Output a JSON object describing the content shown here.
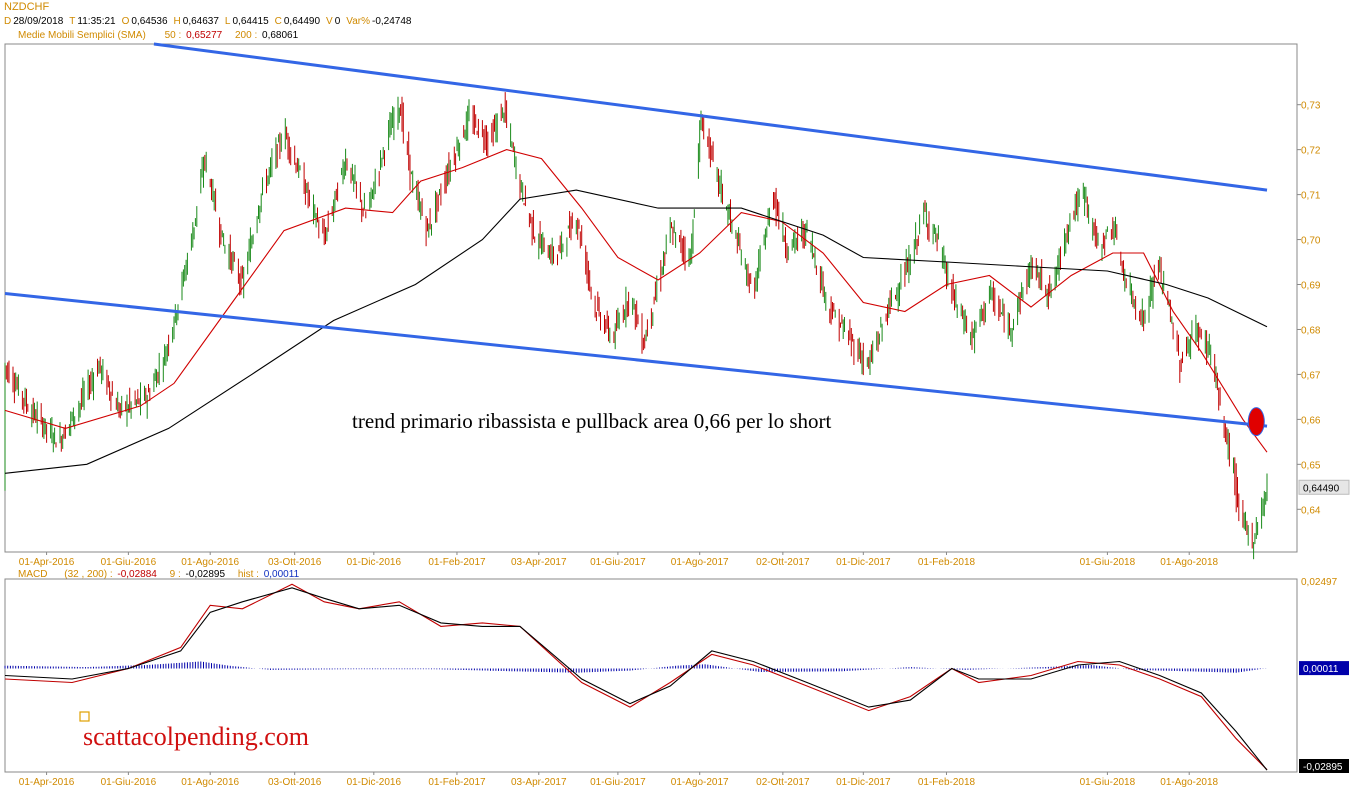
{
  "header": {
    "symbol": "NZDCHF",
    "ohlc": [
      {
        "key": "D",
        "value": "28/09/2018"
      },
      {
        "key": "T",
        "value": "11:35:21"
      },
      {
        "key": "O",
        "value": "0,64536"
      },
      {
        "key": "H",
        "value": "0,64637"
      },
      {
        "key": "L",
        "value": "0,64415"
      },
      {
        "key": "C",
        "value": "0,64490"
      },
      {
        "key": "V",
        "value": "0"
      },
      {
        "key": "Var%",
        "value": "-0,24748"
      }
    ],
    "sma_label": "Medie Mobili Semplici (SMA)",
    "sma_fast_period": "50 :",
    "sma_fast_value": "0,65277",
    "sma_slow_period": "200 :",
    "sma_slow_value": "0,68061",
    "macd_label": "MACD",
    "macd_params": "(32 , 200) :",
    "macd_value": "-0,02884",
    "signal_period": "9 :",
    "signal_value": "-0,02895",
    "hist_label": "hist :",
    "hist_value": "0,00011"
  },
  "annotation": "trend primario ribassista e pullback area 0,66 per lo short",
  "watermark": "scattacolpending.com",
  "colors": {
    "bull": "#1a8a1a",
    "bear": "#c00000",
    "trendline": "#3366e6",
    "sma_fast": "#d00000",
    "sma_slow": "#000000",
    "macd_hist": "#0000aa",
    "axis_text": "#d08a00",
    "marker": "#e00000"
  },
  "chart_data": [
    {
      "type": "candlestick",
      "title": "NZDCHF",
      "x_tick_labels": [
        "01-Apr-2016",
        "01-Giu-2016",
        "01-Ago-2016",
        "03-Ott-2016",
        "01-Dic-2016",
        "01-Feb-2017",
        "03-Apr-2017",
        "01-Giu-2017",
        "01-Ago-2017",
        "02-Ott-2017",
        "01-Dic-2017",
        "01-Feb-2018",
        "01-Giu-2018",
        "01-Ago-2018"
      ],
      "x_tick_dates": [
        "2016-04-01",
        "2016-06-01",
        "2016-08-01",
        "2016-10-03",
        "2016-12-01",
        "2017-02-01",
        "2017-04-03",
        "2017-06-01",
        "2017-08-01",
        "2017-10-02",
        "2017-12-01",
        "2018-02-01",
        "2018-06-01",
        "2018-08-01"
      ],
      "x_range": [
        "2016-03-01",
        "2018-09-28"
      ],
      "y_ticks": [
        "0,73",
        "0,72",
        "0,71",
        "0,70",
        "0,69",
        "0,68",
        "0,67",
        "0,66",
        "0,65",
        "0,64"
      ],
      "y_tick_values": [
        0.73,
        0.72,
        0.71,
        0.7,
        0.69,
        0.68,
        0.67,
        0.66,
        0.65,
        0.64
      ],
      "ylim": [
        0.6305,
        0.7435
      ],
      "last_price": 0.6449,
      "last_price_label": "0,64490",
      "price_path": [
        [
          "2016-03-01",
          0.672
        ],
        [
          "2016-03-20",
          0.662
        ],
        [
          "2016-04-10",
          0.655
        ],
        [
          "2016-04-25",
          0.663
        ],
        [
          "2016-05-10",
          0.672
        ],
        [
          "2016-05-25",
          0.662
        ],
        [
          "2016-06-15",
          0.665
        ],
        [
          "2016-06-28",
          0.674
        ],
        [
          "2016-07-08",
          0.686
        ],
        [
          "2016-07-18",
          0.7
        ],
        [
          "2016-07-28",
          0.718
        ],
        [
          "2016-08-10",
          0.7
        ],
        [
          "2016-08-25",
          0.69
        ],
        [
          "2016-09-08",
          0.71
        ],
        [
          "2016-09-25",
          0.724
        ],
        [
          "2016-10-10",
          0.712
        ],
        [
          "2016-10-25",
          0.7
        ],
        [
          "2016-11-10",
          0.718
        ],
        [
          "2016-11-25",
          0.705
        ],
        [
          "2016-12-10",
          0.722
        ],
        [
          "2016-12-20",
          0.73
        ],
        [
          "2016-12-30",
          0.712
        ],
        [
          "2017-01-10",
          0.702
        ],
        [
          "2017-01-25",
          0.715
        ],
        [
          "2017-02-10",
          0.727
        ],
        [
          "2017-02-25",
          0.722
        ],
        [
          "2017-03-08",
          0.729
        ],
        [
          "2017-03-20",
          0.712
        ],
        [
          "2017-04-01",
          0.7
        ],
        [
          "2017-04-15",
          0.696
        ],
        [
          "2017-05-01",
          0.705
        ],
        [
          "2017-05-15",
          0.685
        ],
        [
          "2017-05-28",
          0.678
        ],
        [
          "2017-06-10",
          0.688
        ],
        [
          "2017-06-20",
          0.677
        ],
        [
          "2017-07-01",
          0.69
        ],
        [
          "2017-07-10",
          0.702
        ],
        [
          "2017-07-25",
          0.696
        ],
        [
          "2017-08-02",
          0.727
        ],
        [
          "2017-08-12",
          0.716
        ],
        [
          "2017-08-25",
          0.703
        ],
        [
          "2017-09-10",
          0.688
        ],
        [
          "2017-09-25",
          0.71
        ],
        [
          "2017-10-05",
          0.698
        ],
        [
          "2017-10-20",
          0.702
        ],
        [
          "2017-11-05",
          0.685
        ],
        [
          "2017-11-25",
          0.676
        ],
        [
          "2017-12-05",
          0.672
        ],
        [
          "2017-12-20",
          0.685
        ],
        [
          "2018-01-05",
          0.695
        ],
        [
          "2018-01-15",
          0.706
        ],
        [
          "2018-01-25",
          0.7
        ],
        [
          "2018-02-05",
          0.688
        ],
        [
          "2018-02-20",
          0.678
        ],
        [
          "2018-03-05",
          0.688
        ],
        [
          "2018-03-20",
          0.68
        ],
        [
          "2018-04-05",
          0.694
        ],
        [
          "2018-04-20",
          0.688
        ],
        [
          "2018-05-05",
          0.706
        ],
        [
          "2018-05-15",
          0.71
        ],
        [
          "2018-05-25",
          0.698
        ],
        [
          "2018-06-05",
          0.703
        ],
        [
          "2018-06-15",
          0.69
        ],
        [
          "2018-06-28",
          0.682
        ],
        [
          "2018-07-08",
          0.694
        ],
        [
          "2018-07-15",
          0.688
        ],
        [
          "2018-07-25",
          0.672
        ],
        [
          "2018-08-05",
          0.68
        ],
        [
          "2018-08-18",
          0.675
        ],
        [
          "2018-08-25",
          0.66
        ],
        [
          "2018-09-01",
          0.652
        ],
        [
          "2018-09-08",
          0.638
        ],
        [
          "2018-09-18",
          0.633
        ],
        [
          "2018-09-28",
          0.6449
        ]
      ],
      "series": [
        {
          "name": "50 :",
          "points": [
            [
              "2016-03-01",
              0.662
            ],
            [
              "2016-04-15",
              0.658
            ],
            [
              "2016-06-10",
              0.663
            ],
            [
              "2016-07-05",
              0.668
            ],
            [
              "2016-08-15",
              0.685
            ],
            [
              "2016-09-25",
              0.702
            ],
            [
              "2016-11-10",
              0.707
            ],
            [
              "2016-12-15",
              0.706
            ],
            [
              "2017-01-05",
              0.713
            ],
            [
              "2017-02-05",
              0.716
            ],
            [
              "2017-03-10",
              0.72
            ],
            [
              "2017-04-05",
              0.718
            ],
            [
              "2017-05-05",
              0.707
            ],
            [
              "2017-06-01",
              0.696
            ],
            [
              "2017-07-01",
              0.691
            ],
            [
              "2017-08-01",
              0.697
            ],
            [
              "2017-09-01",
              0.706
            ],
            [
              "2017-10-01",
              0.704
            ],
            [
              "2017-11-01",
              0.697
            ],
            [
              "2017-12-01",
              0.686
            ],
            [
              "2018-01-01",
              0.684
            ],
            [
              "2018-02-01",
              0.69
            ],
            [
              "2018-03-05",
              0.692
            ],
            [
              "2018-04-05",
              0.685
            ],
            [
              "2018-05-05",
              0.692
            ],
            [
              "2018-06-05",
              0.697
            ],
            [
              "2018-06-28",
              0.697
            ],
            [
              "2018-07-20",
              0.684
            ],
            [
              "2018-08-10",
              0.675
            ],
            [
              "2018-09-10",
              0.66
            ],
            [
              "2018-09-28",
              0.6527
            ]
          ]
        },
        {
          "name": "200 :",
          "points": [
            [
              "2016-03-01",
              0.648
            ],
            [
              "2016-05-01",
              0.65
            ],
            [
              "2016-07-01",
              0.658
            ],
            [
              "2016-09-01",
              0.67
            ],
            [
              "2016-11-01",
              0.682
            ],
            [
              "2017-01-01",
              0.69
            ],
            [
              "2017-02-20",
              0.7
            ],
            [
              "2017-03-20",
              0.709
            ],
            [
              "2017-05-01",
              0.711
            ],
            [
              "2017-07-01",
              0.707
            ],
            [
              "2017-09-01",
              0.707
            ],
            [
              "2017-11-01",
              0.701
            ],
            [
              "2017-12-01",
              0.696
            ],
            [
              "2018-02-01",
              0.695
            ],
            [
              "2018-04-01",
              0.694
            ],
            [
              "2018-06-01",
              0.693
            ],
            [
              "2018-07-15",
              0.69
            ],
            [
              "2018-08-15",
              0.687
            ],
            [
              "2018-09-28",
              0.6806
            ]
          ]
        }
      ],
      "trendlines": [
        {
          "from": [
            "2016-06-20",
            0.7435
          ],
          "to": [
            "2018-09-28",
            0.711
          ]
        },
        {
          "from": [
            "2016-03-01",
            0.688
          ],
          "to": [
            "2018-09-28",
            0.6585
          ]
        }
      ],
      "marker": {
        "date": "2018-09-20",
        "value": 0.6595
      }
    },
    {
      "type": "line",
      "title": "MACD",
      "ylim": [
        -0.0295,
        0.0255
      ],
      "y_ticks": [
        "0,02497"
      ],
      "y_tick_values": [
        0.02497
      ],
      "value_labels": [
        {
          "label": "0,00011",
          "value": 0.00011,
          "color": "#0000aa"
        },
        {
          "label": "-0,02884",
          "value": -0.02884,
          "color": "#e00000"
        },
        {
          "label": "-0,02895",
          "value": -0.02895,
          "color": "#000000"
        }
      ],
      "series": [
        {
          "name": "(32 , 200) :",
          "points": [
            [
              "2016-03-01",
              -0.003
            ],
            [
              "2016-04-20",
              -0.004
            ],
            [
              "2016-06-01",
              0.0
            ],
            [
              "2016-07-10",
              0.006
            ],
            [
              "2016-08-01",
              0.018
            ],
            [
              "2016-08-25",
              0.017
            ],
            [
              "2016-10-01",
              0.024
            ],
            [
              "2016-10-25",
              0.019
            ],
            [
              "2016-11-20",
              0.017
            ],
            [
              "2016-12-20",
              0.019
            ],
            [
              "2017-01-20",
              0.012
            ],
            [
              "2017-02-20",
              0.013
            ],
            [
              "2017-03-20",
              0.012
            ],
            [
              "2017-05-05",
              -0.004
            ],
            [
              "2017-06-10",
              -0.011
            ],
            [
              "2017-07-10",
              -0.004
            ],
            [
              "2017-08-10",
              0.004
            ],
            [
              "2017-09-10",
              0.001
            ],
            [
              "2017-10-20",
              -0.005
            ],
            [
              "2017-12-05",
              -0.012
            ],
            [
              "2018-01-05",
              -0.008
            ],
            [
              "2018-02-05",
              0.0
            ],
            [
              "2018-02-25",
              -0.004
            ],
            [
              "2018-04-05",
              -0.002
            ],
            [
              "2018-05-10",
              0.002
            ],
            [
              "2018-06-10",
              0.001
            ],
            [
              "2018-07-10",
              -0.003
            ],
            [
              "2018-08-10",
              -0.008
            ],
            [
              "2018-09-05",
              -0.02
            ],
            [
              "2018-09-28",
              -0.02884
            ]
          ]
        },
        {
          "name": "9 :",
          "points": [
            [
              "2016-03-01",
              -0.002
            ],
            [
              "2016-04-20",
              -0.003
            ],
            [
              "2016-06-01",
              0.0
            ],
            [
              "2016-07-10",
              0.005
            ],
            [
              "2016-08-01",
              0.016
            ],
            [
              "2016-08-25",
              0.019
            ],
            [
              "2016-10-01",
              0.023
            ],
            [
              "2016-10-25",
              0.02
            ],
            [
              "2016-11-20",
              0.017
            ],
            [
              "2016-12-20",
              0.018
            ],
            [
              "2017-01-20",
              0.013
            ],
            [
              "2017-02-20",
              0.012
            ],
            [
              "2017-03-20",
              0.012
            ],
            [
              "2017-05-05",
              -0.003
            ],
            [
              "2017-06-10",
              -0.01
            ],
            [
              "2017-07-10",
              -0.005
            ],
            [
              "2017-08-10",
              0.005
            ],
            [
              "2017-09-10",
              0.002
            ],
            [
              "2017-10-20",
              -0.004
            ],
            [
              "2017-12-05",
              -0.011
            ],
            [
              "2018-01-05",
              -0.009
            ],
            [
              "2018-02-05",
              0.0
            ],
            [
              "2018-02-25",
              -0.003
            ],
            [
              "2018-04-05",
              -0.003
            ],
            [
              "2018-05-10",
              0.001
            ],
            [
              "2018-06-10",
              0.002
            ],
            [
              "2018-07-10",
              -0.002
            ],
            [
              "2018-08-10",
              -0.007
            ],
            [
              "2018-09-05",
              -0.018
            ],
            [
              "2018-09-28",
              -0.02895
            ]
          ]
        },
        {
          "name": "hist :",
          "kind": "histogram",
          "points": [
            [
              "2016-03-01",
              0.0008
            ],
            [
              "2016-05-01",
              0.0004
            ],
            [
              "2016-06-15",
              0.001
            ],
            [
              "2016-07-25",
              0.002
            ],
            [
              "2016-08-15",
              0.0008
            ],
            [
              "2016-09-15",
              -0.0004
            ],
            [
              "2016-11-15",
              -0.0002
            ],
            [
              "2017-01-15",
              -0.0002
            ],
            [
              "2017-03-15",
              -0.0008
            ],
            [
              "2017-05-01",
              -0.0012
            ],
            [
              "2017-06-10",
              -0.0006
            ],
            [
              "2017-07-15",
              0.0008
            ],
            [
              "2017-08-05",
              0.0012
            ],
            [
              "2017-09-15",
              -0.001
            ],
            [
              "2017-11-15",
              -0.0008
            ],
            [
              "2018-01-05",
              0.0004
            ],
            [
              "2018-02-15",
              -0.0004
            ],
            [
              "2018-04-15",
              0.0004
            ],
            [
              "2018-05-20",
              0.001
            ],
            [
              "2018-06-20",
              -0.0004
            ],
            [
              "2018-08-01",
              -0.0008
            ],
            [
              "2018-09-05",
              -0.0012
            ],
            [
              "2018-09-28",
              0.00011
            ]
          ]
        }
      ]
    }
  ]
}
